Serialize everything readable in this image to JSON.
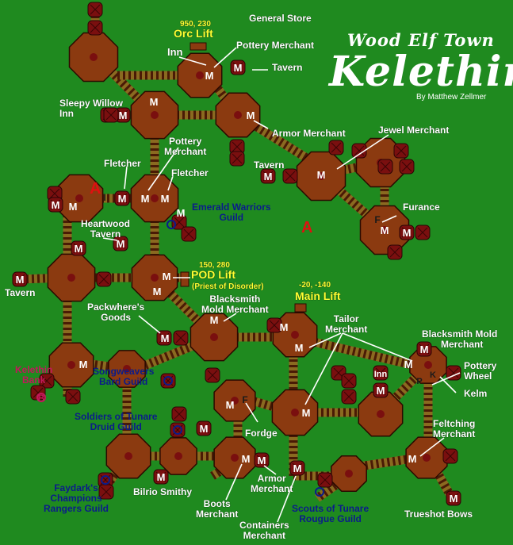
{
  "title": {
    "line1": "Wood Elf Town",
    "line2": "Kelethin",
    "credit": "By Matthew Zellmer"
  },
  "colors": {
    "background": "#1f8a1f",
    "platform": "#8b3a10",
    "hut": "#7a0f0f",
    "bridge": "#8a6a20",
    "guild_text": "#0b1c8a",
    "coord_text": "#ffff33",
    "marker_red": "#e01010",
    "bank_text": "#c2185b"
  },
  "markers": {
    "merchant": "M",
    "inn": "Inn",
    "forge": "F",
    "anvil": "A",
    "kiln": "K",
    "wheel": "P"
  },
  "labels": {
    "general_store": "General Store",
    "orc_lift_coord": "950, 230",
    "orc_lift": "Orc Lift",
    "inn_top": "Inn",
    "pottery_merchant_top": "Pottery Merchant",
    "tavern_top": "Tavern",
    "sleepy_willow": [
      "Sleepy Willow",
      "Inn"
    ],
    "armor_merchant_top": "Armor Merchant",
    "jewel_merchant": "Jewel Merchant",
    "fletcher_1": "Fletcher",
    "pottery_merchant_2": [
      "Pottery",
      "Merchant"
    ],
    "fletcher_2": "Fletcher",
    "tavern_east": "Tavern",
    "emerald_warriors": [
      "Emerald Warriors",
      "Guild"
    ],
    "furance": "Furance",
    "heartwood": [
      "Heartwood",
      "Tavern"
    ],
    "pod_lift_coord": "150, 280",
    "pod_lift": "POD Lift",
    "priest_of_disorder": "(Priest of Disorder)",
    "tavern_west": "Tavern",
    "main_lift_coord": "-20, -140",
    "main_lift": "Main Lift",
    "packwhere": [
      "Packwhere's",
      "Goods"
    ],
    "blacksmith_mold_1": [
      "Blacksmith",
      "Mold Merchant"
    ],
    "tailor_merchant": [
      "Tailor",
      "Merchant"
    ],
    "blacksmith_mold_2": [
      "Blacksmith Mold",
      "Merchant"
    ],
    "kelethin_bank": [
      "Kelethin",
      "Bank"
    ],
    "songweavers": [
      "Songweavers",
      "Bard Guild"
    ],
    "inn_east": "Inn",
    "pottery_wheel": [
      "Pottery",
      "Wheel"
    ],
    "kelm": "Kelm",
    "soldiers_of_tunare": [
      "Soldiers of Tunare",
      "Druid Guild"
    ],
    "fordge": "Fordge",
    "feltching_merchant": [
      "Feltching",
      "Merchant"
    ],
    "faydarks_champions": [
      "Faydark's",
      "Champions",
      "Rangers Guild"
    ],
    "bilrio_smithy": "Bilrio Smithy",
    "armor_merchant_south": [
      "Armor",
      "Merchant"
    ],
    "boots_merchant": [
      "Boots",
      "Merchant"
    ],
    "containers_merchant": [
      "Containers",
      "Merchant"
    ],
    "scouts_of_tunare": [
      "Scouts of Tunare",
      "Rougue Guild"
    ],
    "trueshot_bows": "Trueshot Bows"
  }
}
